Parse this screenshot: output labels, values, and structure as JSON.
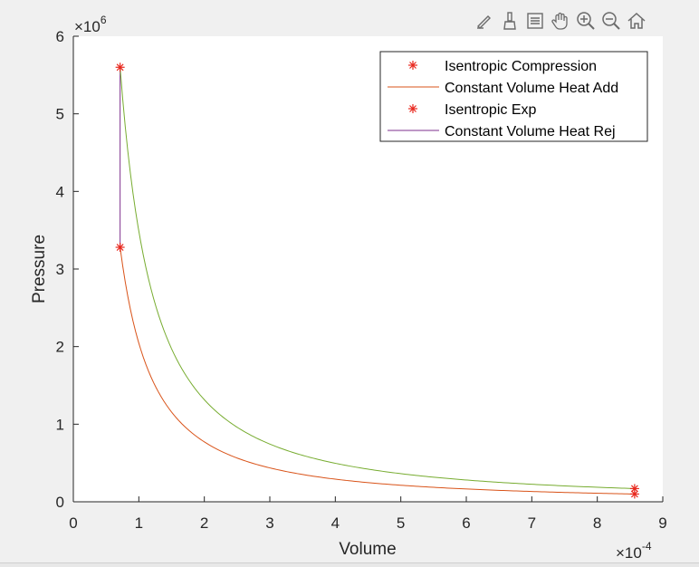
{
  "toolbar": {
    "buttons": [
      {
        "name": "edit-plot-icon"
      },
      {
        "name": "brush-icon"
      },
      {
        "name": "data-tips-icon"
      },
      {
        "name": "pan-icon"
      },
      {
        "name": "zoom-in-icon"
      },
      {
        "name": "zoom-out-icon"
      },
      {
        "name": "home-icon"
      }
    ]
  },
  "chart_data": {
    "type": "line",
    "xlabel": "Volume",
    "ylabel": "Pressure",
    "xlim": [
      0,
      9
    ],
    "ylim": [
      0,
      6
    ],
    "x_exponent_label": "×10",
    "x_exponent": "-4",
    "y_exponent_label": "×10",
    "y_exponent": "6",
    "x_ticks": [
      "0",
      "1",
      "2",
      "3",
      "4",
      "5",
      "6",
      "7",
      "8",
      "9"
    ],
    "y_ticks": [
      "0",
      "1",
      "2",
      "3",
      "4",
      "5",
      "6"
    ],
    "grid": false,
    "legend_position": "top-right",
    "series": [
      {
        "name": "Isentropic Compression",
        "style": "marker",
        "color": "#e8281e",
        "x": [
          8.57,
          0.714
        ],
        "y": [
          0.1,
          3.28
        ]
      },
      {
        "name": "Constant Volume Heat Add",
        "style": "line",
        "color": "#d95319",
        "curve": "isentropic",
        "x": [
          0.714,
          8.57
        ],
        "y": [
          3.28,
          0.1
        ]
      },
      {
        "name": "Isentropic Exp",
        "style": "marker",
        "color": "#e8281e",
        "x": [
          0.714,
          8.57
        ],
        "y": [
          5.6,
          0.17
        ]
      },
      {
        "name": "Constant Volume Heat Rej",
        "style": "line",
        "color": "#7e2f8e",
        "x": [
          0.714,
          0.714
        ],
        "y": [
          3.28,
          5.6
        ]
      },
      {
        "style": "line",
        "color": "#77ac30",
        "curve": "isentropic",
        "x": [
          0.714,
          8.57
        ],
        "y": [
          5.6,
          0.17
        ]
      }
    ]
  }
}
